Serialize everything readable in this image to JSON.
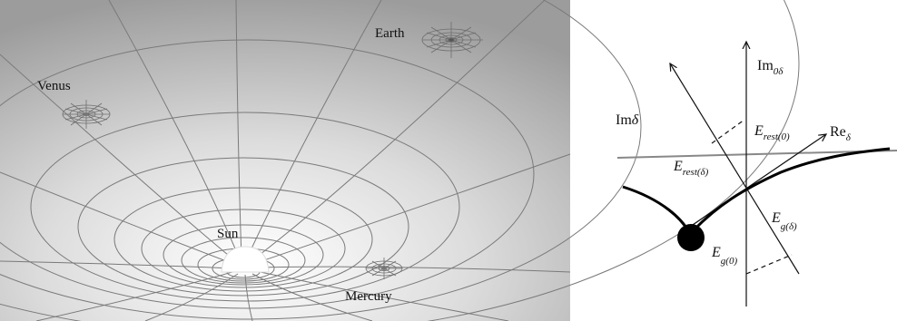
{
  "left_panel": {
    "labels": {
      "earth": "Earth",
      "venus": "Venus",
      "sun": "Sun",
      "mercury": "Mercury"
    },
    "colors": {
      "background_light": "#f2f2f2",
      "background_dark": "#9a9a9a",
      "grid_line": "#7a7a7a",
      "sun": "#ffffff"
    }
  },
  "right_panel": {
    "labels": {
      "im0delta": {
        "base": "Im",
        "sub": "0δ"
      },
      "imdelta": {
        "base": "Im",
        "italic": "δ"
      },
      "redelta": {
        "base": "Re",
        "sub": "δ"
      },
      "e_rest_delta": {
        "base": "E",
        "sub": "rest(δ)"
      },
      "e_rest_0": {
        "base": "E",
        "sub": "rest(0)"
      },
      "e_g_delta": {
        "base": "E",
        "sub": "g(δ)"
      },
      "e_g_0": {
        "base": "E",
        "sub": "g(0)"
      }
    },
    "colors": {
      "axis": "#111111",
      "horizon_line": "#888888",
      "curve": "#000000"
    }
  }
}
